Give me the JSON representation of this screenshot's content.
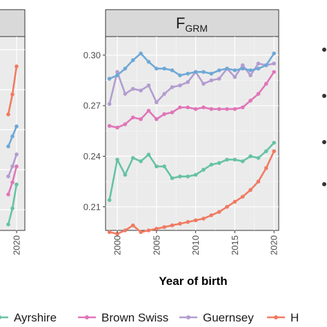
{
  "chart_data": {
    "type": "line",
    "xlabel": "Year of birth",
    "ylabel": "",
    "x": [
      1999,
      2000,
      2001,
      2002,
      2003,
      2004,
      2005,
      2006,
      2007,
      2008,
      2009,
      2010,
      2011,
      2012,
      2013,
      2014,
      2015,
      2016,
      2017,
      2018,
      2019,
      2020
    ],
    "xlim": [
      1998.5,
      2020.6
    ],
    "xticks": [
      2000,
      2005,
      2010,
      2015,
      2020
    ],
    "panels": [
      {
        "strip_main": "F",
        "strip_sub": "GRM",
        "ylim": [
          0.196,
          0.311
        ],
        "yticks": [
          0.21,
          0.24,
          0.27,
          0.3
        ],
        "ytick_labels": [
          "0.21",
          "0.24",
          "0.27",
          "0.30"
        ],
        "series": [
          {
            "name": "Ayrshire",
            "color": "#66c2a5",
            "values": [
              0.214,
              0.238,
              0.229,
              0.239,
              0.237,
              0.241,
              0.234,
              0.234,
              0.227,
              0.228,
              0.228,
              0.229,
              0.232,
              0.235,
              0.236,
              0.238,
              0.238,
              0.237,
              0.24,
              0.239,
              0.243,
              0.248
            ]
          },
          {
            "name": "Brown Swiss",
            "color": "#e075b8",
            "values": [
              0.258,
              0.257,
              0.259,
              0.263,
              0.262,
              0.267,
              0.262,
              0.265,
              0.266,
              0.269,
              0.269,
              0.268,
              0.269,
              0.268,
              0.268,
              0.268,
              0.268,
              0.269,
              0.273,
              0.277,
              0.283,
              0.29
            ]
          },
          {
            "name": "Guernsey",
            "color": "#b39cd0",
            "values": [
              0.271,
              0.29,
              0.277,
              0.28,
              0.279,
              0.282,
              0.272,
              0.277,
              0.281,
              0.282,
              0.284,
              0.29,
              0.283,
              0.285,
              0.286,
              0.292,
              0.287,
              0.294,
              0.288,
              0.295,
              0.294,
              0.295
            ]
          },
          {
            "name": "Holstein",
            "color": "#f07a61",
            "values": [
              0.195,
              0.194,
              0.196,
              0.199,
              0.195,
              0.196,
              0.197,
              0.198,
              0.199,
              0.2,
              0.201,
              0.202,
              0.203,
              0.205,
              0.207,
              0.21,
              0.213,
              0.216,
              0.22,
              0.225,
              0.233,
              0.243
            ]
          },
          {
            "name": "",
            "color": "#6fa8d6",
            "values": [
              0.286,
              0.288,
              0.292,
              0.297,
              0.301,
              0.296,
              0.292,
              0.292,
              0.291,
              0.288,
              0.289,
              0.29,
              0.29,
              0.289,
              0.291,
              0.292,
              0.291,
              0.292,
              0.291,
              0.292,
              0.294,
              0.301
            ]
          }
        ]
      },
      {
        "xtick_labels": [
          "2020"
        ],
        "series": [
          {
            "name": "Ayrshire",
            "color": "#66c2a5",
            "values": [
              null,
              null,
              null,
              null,
              null,
              null,
              null,
              null,
              null,
              null,
              null,
              null,
              null,
              null,
              null,
              null,
              null,
              null,
              null,
              0.223,
              0.231,
              0.243
            ]
          },
          {
            "name": "Brown Swiss",
            "color": "#e075b8",
            "values": [
              null,
              null,
              null,
              null,
              null,
              null,
              null,
              null,
              null,
              null,
              null,
              null,
              null,
              null,
              null,
              null,
              null,
              null,
              null,
              0.238,
              0.244,
              0.252
            ]
          },
          {
            "name": "Guernsey",
            "color": "#b39cd0",
            "values": [
              null,
              null,
              null,
              null,
              null,
              null,
              null,
              null,
              null,
              null,
              null,
              null,
              null,
              null,
              null,
              null,
              null,
              null,
              null,
              0.247,
              0.252,
              0.258
            ]
          },
          {
            "name": "Holstein",
            "color": "#f07a61",
            "values": [
              null,
              null,
              null,
              null,
              null,
              null,
              null,
              null,
              null,
              null,
              null,
              null,
              null,
              null,
              null,
              null,
              null,
              null,
              null,
              0.278,
              0.288,
              0.302
            ]
          },
          {
            "name": "",
            "color": "#6fa8d6",
            "values": [
              null,
              null,
              null,
              null,
              null,
              null,
              null,
              null,
              null,
              null,
              null,
              null,
              null,
              null,
              null,
              null,
              null,
              null,
              null,
              0.262,
              0.267,
              0.272
            ]
          }
        ]
      }
    ],
    "legend": {
      "placement": "bottom",
      "items": [
        {
          "label": "Ayrshire",
          "color": "#66c2a5"
        },
        {
          "label": "Brown Swiss",
          "color": "#e075b8"
        },
        {
          "label": "Guernsey",
          "color": "#b39cd0"
        },
        {
          "label": "H",
          "color": "#f07a61"
        }
      ]
    }
  }
}
